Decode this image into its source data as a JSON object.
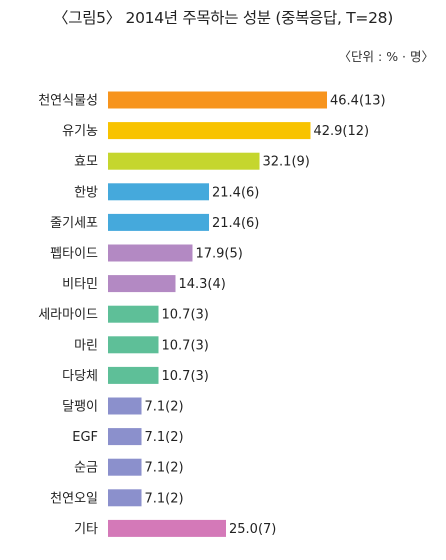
{
  "chart_data": {
    "type": "bar",
    "orientation": "horizontal",
    "title": "〈그림5〉 2014년 주목하는 성분 (중복응답, T=28)",
    "unit": "〈단위 : % · 명〉",
    "categories": [
      "천연식물성",
      "유기농",
      "효모",
      "한방",
      "줄기세포",
      "펩타이드",
      "비타민",
      "세라마이드",
      "마린",
      "다당체",
      "달팽이",
      "EGF",
      "순금",
      "천연오일",
      "기타"
    ],
    "values": [
      46.4,
      42.9,
      32.1,
      21.4,
      21.4,
      17.9,
      14.3,
      10.7,
      10.7,
      10.7,
      7.1,
      7.1,
      7.1,
      7.1,
      25.0
    ],
    "labels": [
      "46.4(13)",
      "42.9(12)",
      "32.1(9)",
      "21.4(6)",
      "21.4(6)",
      "17.9(5)",
      "14.3(4)",
      "10.7(3)",
      "10.7(3)",
      "10.7(3)",
      "7.1(2)",
      "7.1(2)",
      "7.1(2)",
      "7.1(2)",
      "25.0(7)"
    ],
    "colors": [
      "#f7941d",
      "#f8c300",
      "#c5d62e",
      "#45a9dc",
      "#45a9dc",
      "#b389c3",
      "#b389c3",
      "#5ebf98",
      "#5ebf98",
      "#5ebf98",
      "#8b90cc",
      "#8b90cc",
      "#8b90cc",
      "#8b90cc",
      "#d479b8"
    ],
    "xlim": [
      0,
      50
    ],
    "grid": false,
    "legend": "none"
  }
}
